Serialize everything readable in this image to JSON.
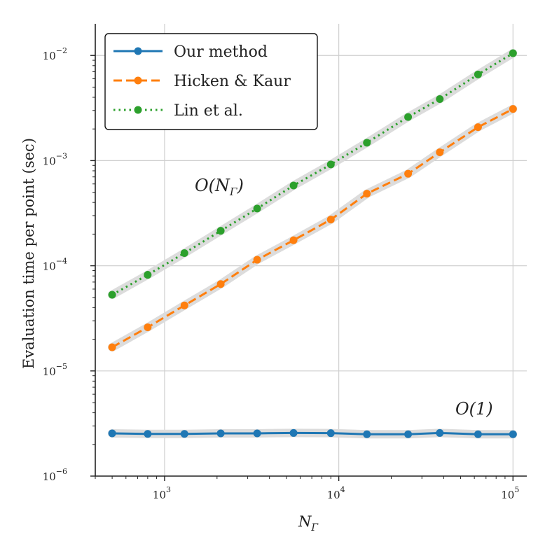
{
  "chart_data": {
    "type": "line",
    "xscale": "log",
    "yscale": "log",
    "xlim": [
      400,
      120000
    ],
    "ylim": [
      1e-06,
      0.02
    ],
    "xlabel": "N_Γ",
    "ylabel": "Evaluation time per point (sec)",
    "grid": true,
    "legend_position": "top-left",
    "x_ticks": [
      {
        "value": 1000,
        "base": "10",
        "exp": "3"
      },
      {
        "value": 10000,
        "base": "10",
        "exp": "4"
      },
      {
        "value": 100000,
        "base": "10",
        "exp": "5"
      }
    ],
    "y_ticks": [
      {
        "value": 1e-06,
        "base": "10",
        "exp": "−6"
      },
      {
        "value": 1e-05,
        "base": "10",
        "exp": "−5"
      },
      {
        "value": 0.0001,
        "base": "10",
        "exp": "−4"
      },
      {
        "value": 0.001,
        "base": "10",
        "exp": "−3"
      },
      {
        "value": 0.01,
        "base": "10",
        "exp": "−2"
      }
    ],
    "x": [
      500,
      800,
      1300,
      2100,
      3400,
      5500,
      9000,
      14500,
      25000,
      38000,
      63000,
      100000
    ],
    "series": [
      {
        "name": "Our method",
        "color": "#1f77b4",
        "dash": "solid",
        "values": [
          2.55e-06,
          2.52e-06,
          2.52e-06,
          2.55e-06,
          2.55e-06,
          2.57e-06,
          2.56e-06,
          2.5e-06,
          2.5e-06,
          2.57e-06,
          2.5e-06,
          2.5e-06
        ]
      },
      {
        "name": "Hicken & Kaur",
        "color": "#ff7f0e",
        "dash": "dashed",
        "values": [
          1.68e-05,
          2.6e-05,
          4.2e-05,
          6.7e-05,
          0.000114,
          0.000175,
          0.000275,
          0.000485,
          0.00075,
          0.0012,
          0.00208,
          0.0031
        ]
      },
      {
        "name": "Lin et al.",
        "color": "#2ca02c",
        "dash": "dotted",
        "values": [
          5.3e-05,
          8.2e-05,
          0.000132,
          0.000215,
          0.00035,
          0.00058,
          0.00092,
          0.00148,
          0.0026,
          0.00385,
          0.0066,
          0.0105
        ]
      }
    ],
    "annotations": [
      {
        "label": "O(N",
        "sub": "Γ",
        "close": ")"
      },
      {
        "label": "O(1)"
      }
    ]
  }
}
